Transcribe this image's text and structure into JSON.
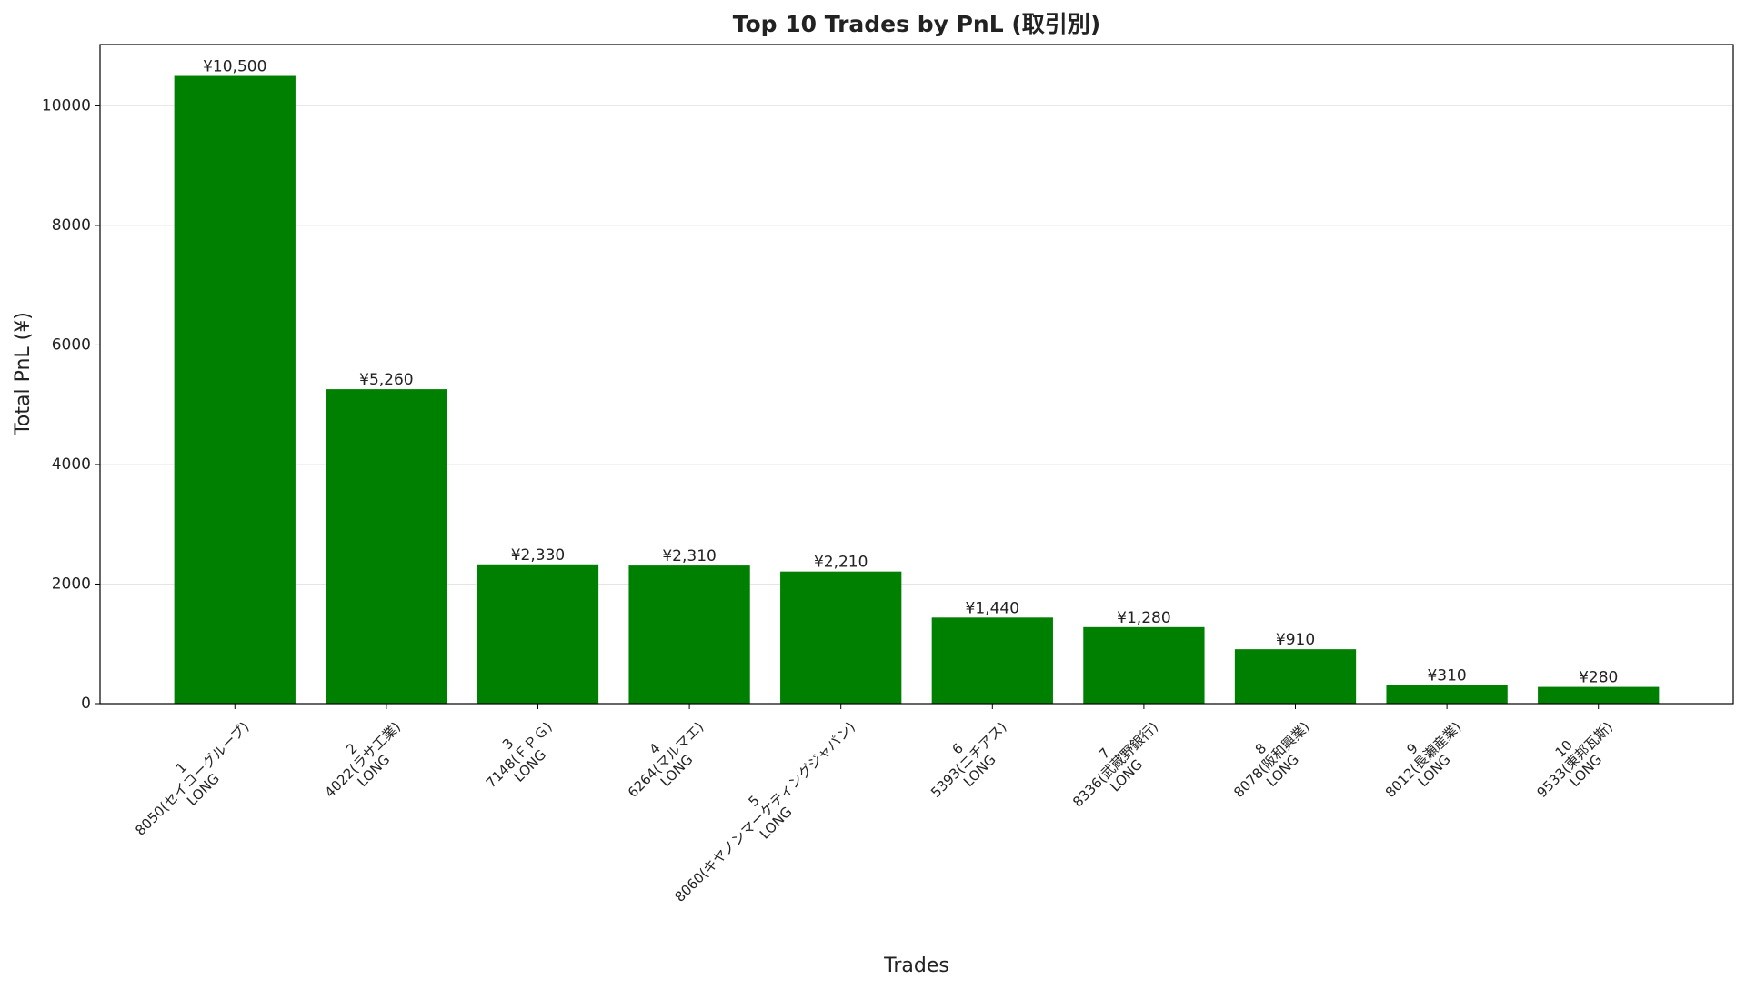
{
  "chart_data": {
    "type": "bar",
    "title": "Top 10 Trades by PnL (取引別)",
    "x_label": "Trades",
    "y_label": "Total PnL (¥)",
    "categories": [
      [
        "1",
        "8050(セイコーグループ)",
        "LONG"
      ],
      [
        "2",
        "4022(ラサ工業)",
        "LONG"
      ],
      [
        "3",
        "7148(ＦＰＧ)",
        "LONG"
      ],
      [
        "4",
        "6264(マルマエ)",
        "LONG"
      ],
      [
        "5",
        "8060(キヤノンマーケティングジャパン)",
        "LONG"
      ],
      [
        "6",
        "5393(ニチアス)",
        "LONG"
      ],
      [
        "7",
        "8336(武蔵野銀行)",
        "LONG"
      ],
      [
        "8",
        "8078(阪和興業)",
        "LONG"
      ],
      [
        "9",
        "8012(長瀬産業)",
        "LONG"
      ],
      [
        "10",
        "9533(東邦瓦斯)",
        "LONG"
      ]
    ],
    "values": [
      10500,
      5260,
      2330,
      2310,
      2210,
      1440,
      1280,
      910,
      310,
      280
    ],
    "value_labels": [
      "¥10,500",
      "¥5,260",
      "¥2,330",
      "¥2,310",
      "¥2,210",
      "¥1,440",
      "¥1,280",
      "¥910",
      "¥310",
      "¥280"
    ],
    "color": "#008000",
    "ylim": [
      0,
      11025
    ],
    "yticks": [
      0,
      2000,
      4000,
      6000,
      8000,
      10000
    ],
    "grid": true
  }
}
